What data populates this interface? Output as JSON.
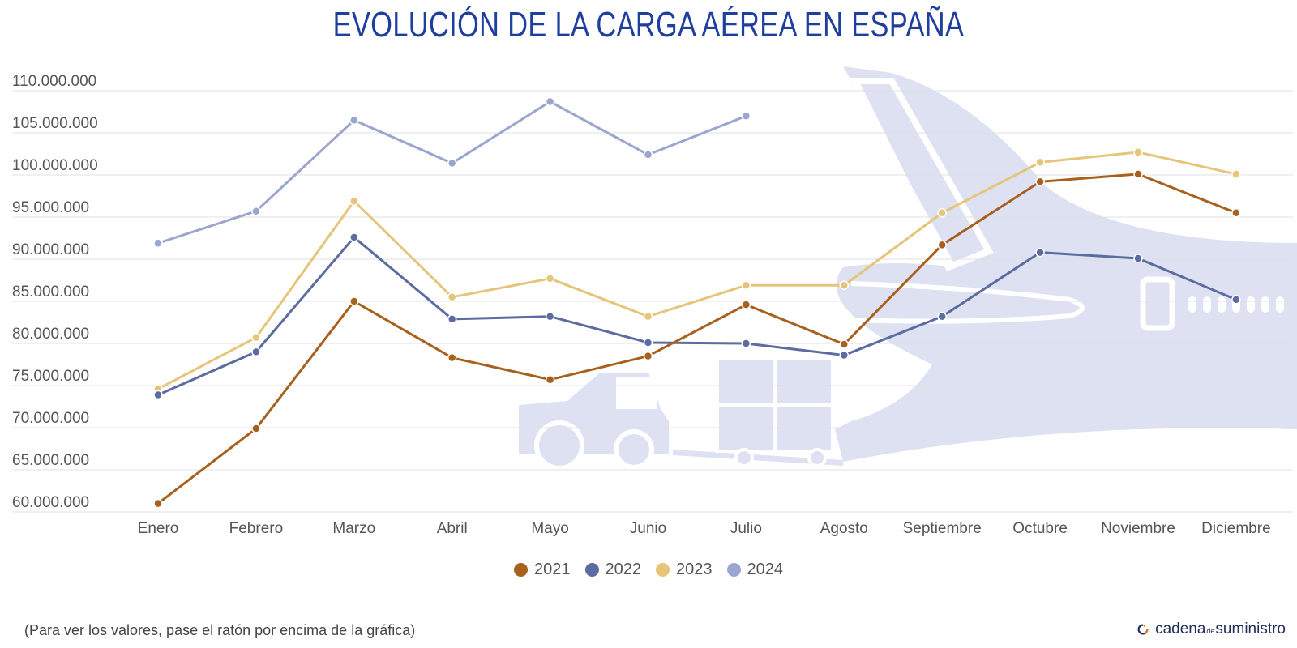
{
  "title": "EVOLUCIÓN DE LA CARGA AÉREA EN ESPAÑA",
  "footnote": "(Para ver los valores, pase el ratón por encima de la gráfica)",
  "brand": {
    "part1": "cadena",
    "part2": "de",
    "part3": "suministro"
  },
  "colors": {
    "grid": "#e0e0e0",
    "watermark": "#dde1f2",
    "title": "#1f3f9e"
  },
  "chart_data": {
    "type": "line",
    "title": "EVOLUCIÓN DE LA CARGA AÉREA EN ESPAÑA",
    "xlabel": "",
    "ylabel": "",
    "categories": [
      "Enero",
      "Febrero",
      "Marzo",
      "Abril",
      "Mayo",
      "Junio",
      "Julio",
      "Agosto",
      "Septiembre",
      "Octubre",
      "Noviembre",
      "Diciembre"
    ],
    "ylim": [
      60000000,
      110000000
    ],
    "yticks": [
      60000000,
      65000000,
      70000000,
      75000000,
      80000000,
      85000000,
      90000000,
      95000000,
      100000000,
      105000000,
      110000000
    ],
    "ytick_labels": [
      "60.000.000",
      "65.000.000",
      "70.000.000",
      "75.000.000",
      "80.000.000",
      "85.000.000",
      "90.000.000",
      "95.000.000",
      "100.000.000",
      "105.000.000",
      "110.000.000"
    ],
    "grid": true,
    "legend_position": "bottom-center",
    "series": [
      {
        "name": "2021",
        "color": "#a8601f",
        "values": [
          61000000,
          69900000,
          85000000,
          78300000,
          75700000,
          78500000,
          84600000,
          79900000,
          91700000,
          99200000,
          100100000,
          95500000
        ]
      },
      {
        "name": "2022",
        "color": "#5c6ba0",
        "values": [
          73900000,
          79000000,
          92600000,
          82900000,
          83200000,
          80100000,
          80000000,
          78600000,
          83200000,
          90800000,
          90100000,
          85200000
        ]
      },
      {
        "name": "2023",
        "color": "#e6c47a",
        "values": [
          74600000,
          80700000,
          96900000,
          85500000,
          87700000,
          83200000,
          86900000,
          86900000,
          95500000,
          101500000,
          102700000,
          100100000
        ]
      },
      {
        "name": "2024",
        "color": "#9aa6cf",
        "values": [
          91900000,
          95700000,
          106500000,
          101400000,
          108700000,
          102400000,
          107000000,
          null,
          null,
          null,
          null,
          null
        ]
      }
    ]
  }
}
